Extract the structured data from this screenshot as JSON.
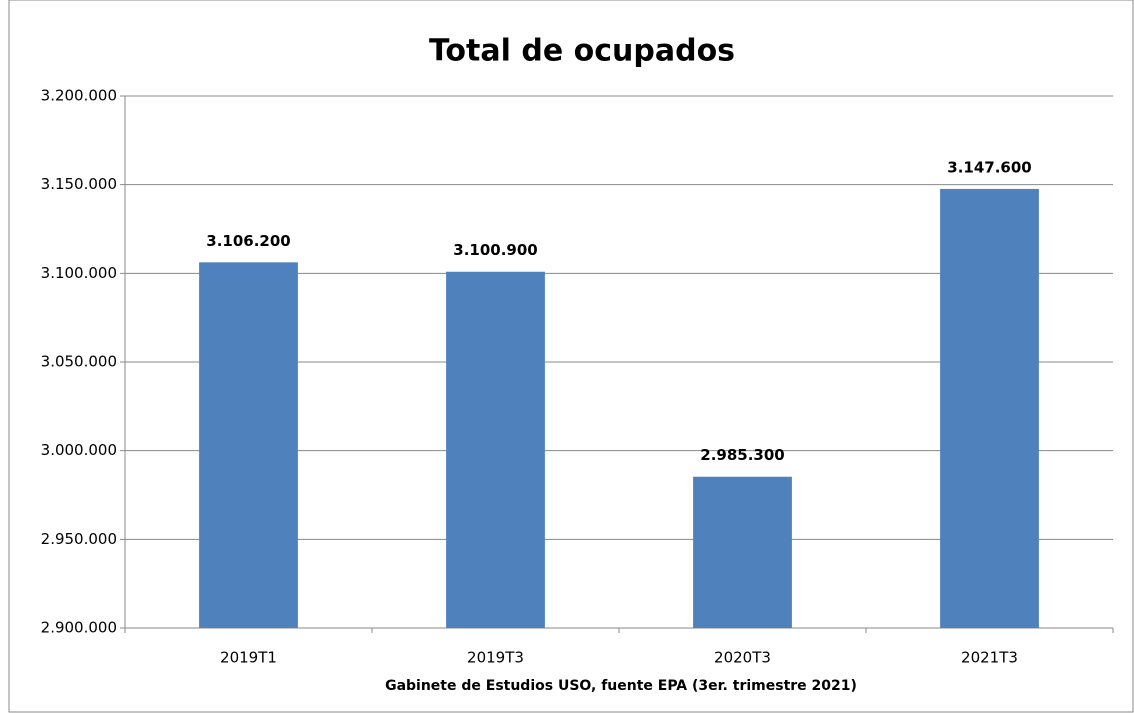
{
  "chart_data": {
    "type": "bar",
    "title": "Total de ocupados",
    "x_label": "Gabinete de Estudios USO, fuente EPA (3er. trimestre 2021)",
    "categories": [
      "2019T1",
      "2019T3",
      "2020T3",
      "2021T3"
    ],
    "values": [
      3106200,
      3100900,
      2985300,
      3147600
    ],
    "value_labels": [
      "3.106.200",
      "3.100.900",
      "2.985.300",
      "3.147.600"
    ],
    "color": "#4f81bd",
    "ylim": [
      2900000,
      3200000
    ],
    "yticks": [
      {
        "value": 2900000,
        "label": "2.900.000"
      },
      {
        "value": 2950000,
        "label": "2.950.000"
      },
      {
        "value": 3000000,
        "label": "3.000.000"
      },
      {
        "value": 3050000,
        "label": "3.050.000"
      },
      {
        "value": 3100000,
        "label": "3.100.000"
      },
      {
        "value": 3150000,
        "label": "3.150.000"
      },
      {
        "value": 3200000,
        "label": "3.200.000"
      }
    ],
    "grid": true
  }
}
